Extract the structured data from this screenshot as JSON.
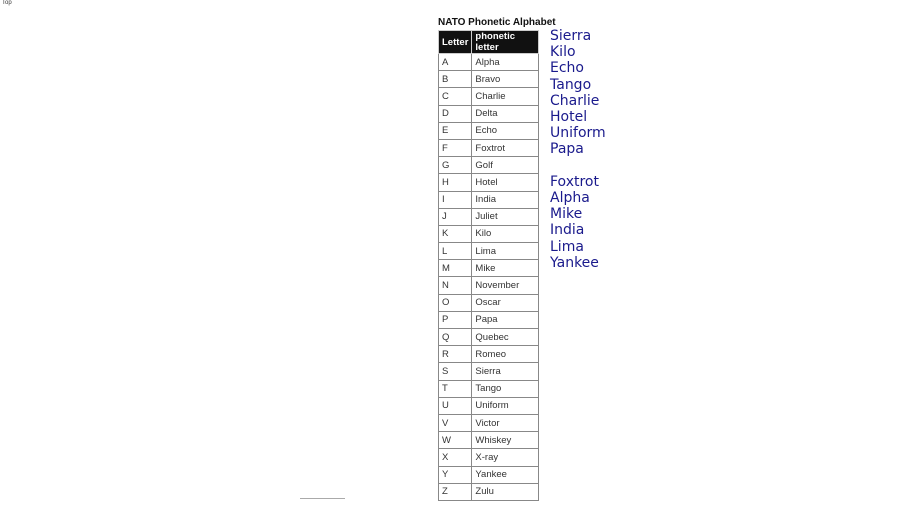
{
  "top_link": "Top",
  "title": "NATO Phonetic Alphabet",
  "headers": [
    "Letter",
    "phonetic letter"
  ],
  "rows": [
    [
      "A",
      "Alpha"
    ],
    [
      "B",
      "Bravo"
    ],
    [
      "C",
      "Charlie"
    ],
    [
      "D",
      "Delta"
    ],
    [
      "E",
      "Echo"
    ],
    [
      "F",
      "Foxtrot"
    ],
    [
      "G",
      "Golf"
    ],
    [
      "H",
      "Hotel"
    ],
    [
      "I",
      "India"
    ],
    [
      "J",
      "Juliet"
    ],
    [
      "K",
      "Kilo"
    ],
    [
      "L",
      "Lima"
    ],
    [
      "M",
      "Mike"
    ],
    [
      "N",
      "November"
    ],
    [
      "O",
      "Oscar"
    ],
    [
      "P",
      "Papa"
    ],
    [
      "Q",
      "Quebec"
    ],
    [
      "R",
      "Romeo"
    ],
    [
      "S",
      "Sierra"
    ],
    [
      "T",
      "Tango"
    ],
    [
      "U",
      "Uniform"
    ],
    [
      "V",
      "Victor"
    ],
    [
      "W",
      "Whiskey"
    ],
    [
      "X",
      "X-ray"
    ],
    [
      "Y",
      "Yankee"
    ],
    [
      "Z",
      "Zulu"
    ]
  ],
  "words": [
    [
      "Sierra",
      "Kilo",
      "Echo",
      "Tango",
      "Charlie",
      "Hotel",
      "Uniform",
      "Papa"
    ],
    [
      "Foxtrot",
      "Alpha",
      "Mike",
      "India",
      "Lima",
      "Yankee"
    ]
  ]
}
